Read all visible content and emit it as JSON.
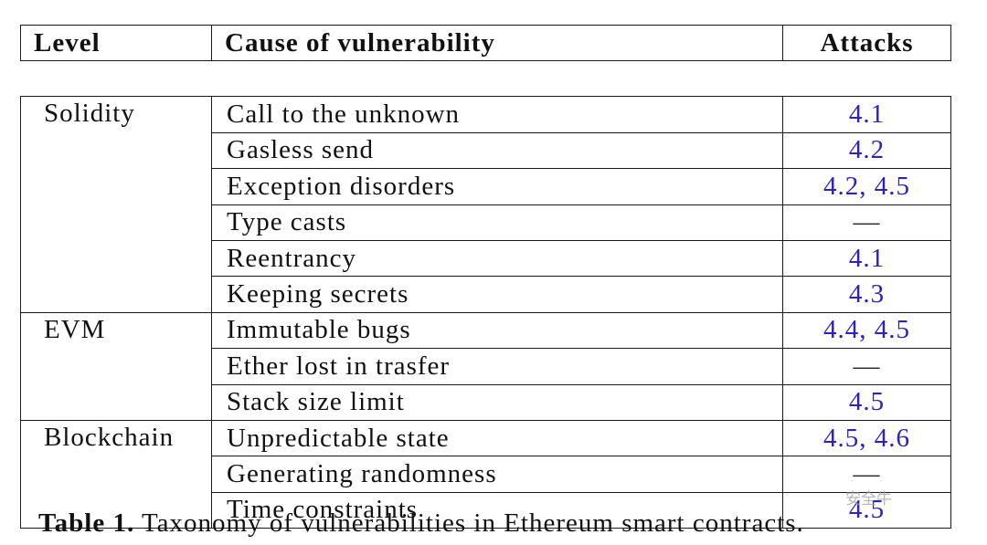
{
  "table": {
    "headers": {
      "level": "Level",
      "cause": "Cause of vulnerability",
      "attacks": "Attacks"
    },
    "groups": [
      {
        "level": "Solidity",
        "rows": [
          {
            "cause": "Call to the unknown",
            "attacks": "4.1"
          },
          {
            "cause": "Gasless send",
            "attacks": "4.2"
          },
          {
            "cause": "Exception disorders",
            "attacks": "4.2, 4.5"
          },
          {
            "cause": "Type casts",
            "attacks": "—"
          },
          {
            "cause": "Reentrancy",
            "attacks": "4.1"
          },
          {
            "cause": "Keeping secrets",
            "attacks": "4.3"
          }
        ]
      },
      {
        "level": "EVM",
        "rows": [
          {
            "cause": "Immutable bugs",
            "attacks": "4.4, 4.5"
          },
          {
            "cause": "Ether lost in trasfer",
            "attacks": "—"
          },
          {
            "cause": "Stack size limit",
            "attacks": "4.5"
          }
        ]
      },
      {
        "level": "Blockchain",
        "rows": [
          {
            "cause": "Unpredictable state",
            "attacks": "4.5, 4.6"
          },
          {
            "cause": "Generating randomness",
            "attacks": "—"
          },
          {
            "cause": "Time constraints",
            "attacks": "4.5"
          }
        ]
      }
    ]
  },
  "caption": {
    "label": "Table 1.",
    "text": " Taxonomy of vulnerabilities in Ethereum smart contracts."
  },
  "watermark": {
    "text": "安全牛"
  },
  "colors": {
    "link": "#2c22b8",
    "text": "#111111"
  }
}
